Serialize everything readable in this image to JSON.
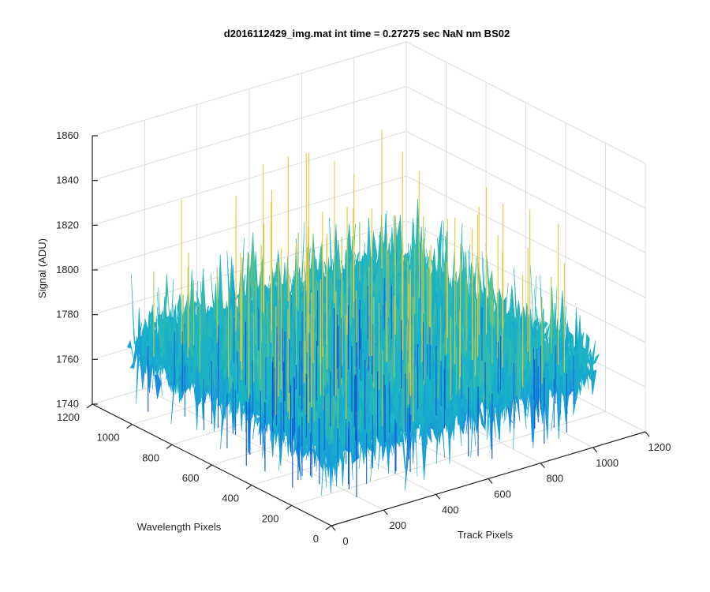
{
  "chart_data": {
    "type": "surface",
    "title": "d2016112429_img.mat int time = 0.27275 sec  NaN nm BS02",
    "xlabel": "Track Pixels",
    "ylabel": "Wavelength Pixels",
    "zlabel": "Signal (ADU)",
    "xlim": [
      0,
      1200
    ],
    "ylim": [
      0,
      1200
    ],
    "zlim": [
      1740,
      1860
    ],
    "x_ticks": [
      "0",
      "200",
      "400",
      "600",
      "800",
      "1000",
      "1200"
    ],
    "y_ticks": [
      "0",
      "200",
      "400",
      "600",
      "800",
      "1000",
      "1200"
    ],
    "z_ticks": [
      "1740",
      "1760",
      "1780",
      "1800",
      "1820",
      "1840",
      "1860"
    ],
    "data_extent": {
      "x": [
        0,
        1024
      ],
      "y": [
        0,
        1024
      ]
    },
    "signal_baseline": 1775,
    "signal_typical_range": [
      1745,
      1825
    ],
    "signal_peak": 1846,
    "grid": true,
    "colormap": "parula",
    "colormap_stops": [
      "#0b4dd8",
      "#1a86e6",
      "#17b3c8",
      "#57c28f",
      "#a6c95a",
      "#e6c93c"
    ]
  }
}
